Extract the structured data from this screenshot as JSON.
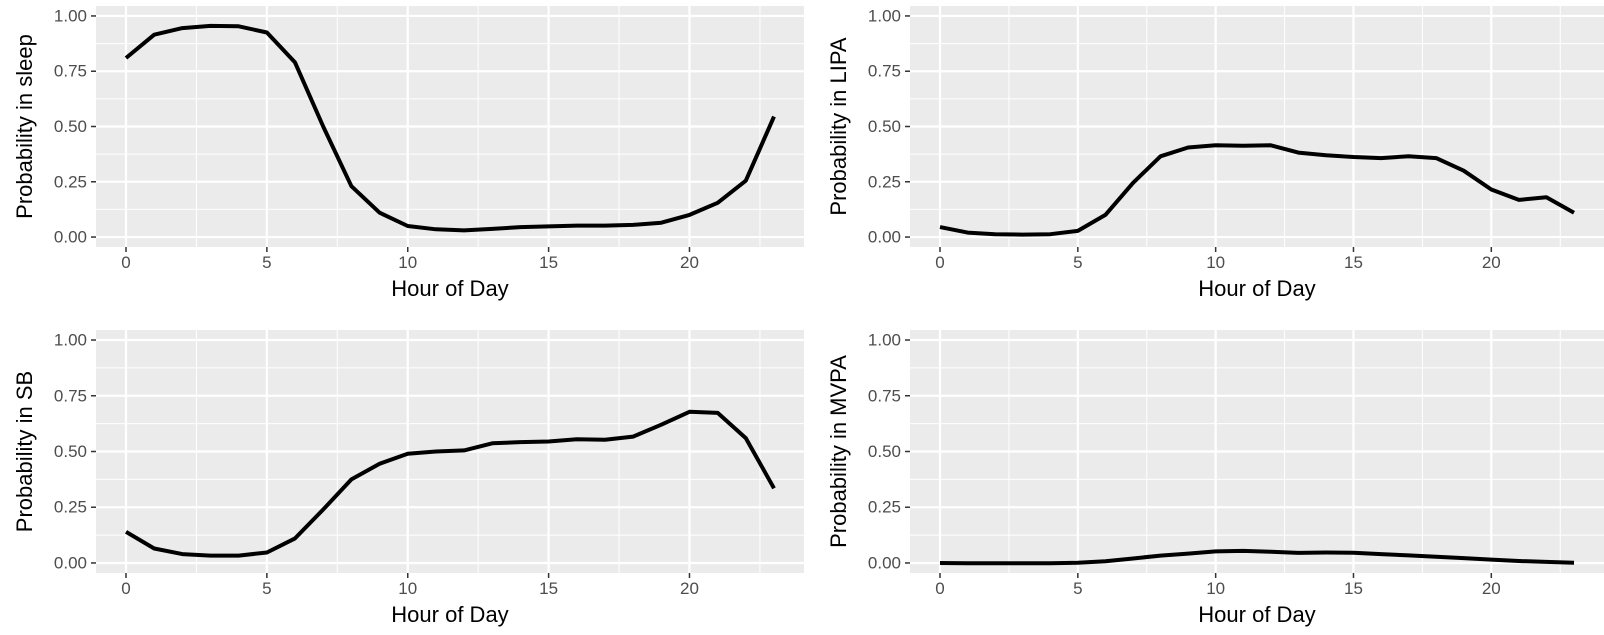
{
  "colors": {
    "panel_background": "#ebebeb",
    "gridline": "#ffffff",
    "line": "#000000",
    "tick_text": "#4d4d4d",
    "title_text": "#000000"
  },
  "chart_data": [
    {
      "type": "line",
      "xlabel": "Hour of Day",
      "ylabel": "Probability in sleep",
      "xlim": [
        0,
        23
      ],
      "ylim": [
        0,
        1
      ],
      "x_ticks": [
        "0",
        "5",
        "10",
        "15",
        "20"
      ],
      "y_ticks": [
        "0.00",
        "0.25",
        "0.50",
        "0.75",
        "1.00"
      ],
      "grid": true,
      "x": [
        0,
        1,
        2,
        3,
        4,
        5,
        6,
        7,
        8,
        9,
        10,
        11,
        12,
        13,
        14,
        15,
        16,
        17,
        18,
        19,
        20,
        21,
        22,
        23
      ],
      "values": [
        0.81,
        0.915,
        0.945,
        0.955,
        0.953,
        0.925,
        0.79,
        0.5,
        0.23,
        0.11,
        0.05,
        0.035,
        0.03,
        0.037,
        0.045,
        0.048,
        0.052,
        0.052,
        0.055,
        0.065,
        0.1,
        0.155,
        0.255,
        0.545
      ]
    },
    {
      "type": "line",
      "xlabel": "Hour of Day",
      "ylabel": "Probability in LIPA",
      "xlim": [
        0,
        23
      ],
      "ylim": [
        0,
        1
      ],
      "x_ticks": [
        "0",
        "5",
        "10",
        "15",
        "20"
      ],
      "y_ticks": [
        "0.00",
        "0.25",
        "0.50",
        "0.75",
        "1.00"
      ],
      "grid": true,
      "x": [
        0,
        1,
        2,
        3,
        4,
        5,
        6,
        7,
        8,
        9,
        10,
        11,
        12,
        13,
        14,
        15,
        16,
        17,
        18,
        19,
        20,
        21,
        22,
        23
      ],
      "values": [
        0.045,
        0.02,
        0.013,
        0.011,
        0.013,
        0.028,
        0.1,
        0.245,
        0.365,
        0.405,
        0.415,
        0.413,
        0.415,
        0.382,
        0.37,
        0.362,
        0.357,
        0.365,
        0.357,
        0.3,
        0.215,
        0.168,
        0.18,
        0.11
      ]
    },
    {
      "type": "line",
      "xlabel": "Hour of Day",
      "ylabel": "Probability in SB",
      "xlim": [
        0,
        23
      ],
      "ylim": [
        0,
        1
      ],
      "x_ticks": [
        "0",
        "5",
        "10",
        "15",
        "20"
      ],
      "y_ticks": [
        "0.00",
        "0.25",
        "0.50",
        "0.75",
        "1.00"
      ],
      "grid": true,
      "x": [
        0,
        1,
        2,
        3,
        4,
        5,
        6,
        7,
        8,
        9,
        10,
        11,
        12,
        13,
        14,
        15,
        16,
        17,
        18,
        19,
        20,
        21,
        22,
        23
      ],
      "values": [
        0.14,
        0.065,
        0.04,
        0.033,
        0.033,
        0.047,
        0.11,
        0.24,
        0.375,
        0.445,
        0.49,
        0.5,
        0.505,
        0.537,
        0.542,
        0.545,
        0.555,
        0.553,
        0.567,
        0.62,
        0.678,
        0.673,
        0.56,
        0.335
      ]
    },
    {
      "type": "line",
      "xlabel": "Hour of Day",
      "ylabel": "Probability in MVPA",
      "xlim": [
        0,
        23
      ],
      "ylim": [
        0,
        1
      ],
      "x_ticks": [
        "0",
        "5",
        "10",
        "15",
        "20"
      ],
      "y_ticks": [
        "0.00",
        "0.25",
        "0.50",
        "0.75",
        "1.00"
      ],
      "grid": true,
      "x": [
        0,
        1,
        2,
        3,
        4,
        5,
        6,
        7,
        8,
        9,
        10,
        11,
        12,
        13,
        14,
        15,
        16,
        17,
        18,
        19,
        20,
        21,
        22,
        23
      ],
      "values": [
        0.0,
        -0.001,
        -0.001,
        -0.001,
        -0.001,
        0.001,
        0.008,
        0.02,
        0.033,
        0.042,
        0.052,
        0.054,
        0.05,
        0.045,
        0.047,
        0.046,
        0.04,
        0.034,
        0.028,
        0.022,
        0.015,
        0.009,
        0.005,
        0.001
      ]
    }
  ]
}
